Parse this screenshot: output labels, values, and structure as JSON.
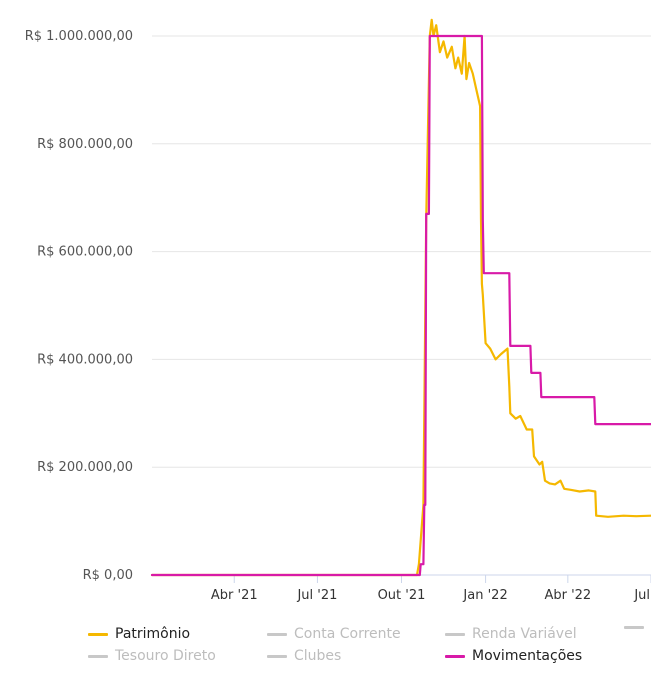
{
  "chart_data": {
    "type": "line",
    "y_ticks": [
      "R$ 1.000.000,00",
      "R$ 800.000,00",
      "R$ 600.000,00",
      "R$ 400.000,00",
      "R$ 200.000,00",
      "R$ 0,00"
    ],
    "y_tick_values": [
      1000000,
      800000,
      600000,
      400000,
      200000,
      0
    ],
    "ylim": [
      0,
      1000000
    ],
    "x_ticks": [
      "Abr '21",
      "Jul '21",
      "Out '21",
      "Jan '22",
      "Abr '22",
      "Jul"
    ],
    "x_tick_values": [
      "2021-04-01",
      "2021-07-01",
      "2021-10-01",
      "2022-01-01",
      "2022-04-01",
      "2022-07-01"
    ],
    "xlim": [
      "2021-01-01",
      "2022-07-01"
    ],
    "grid": "horizontal",
    "legend_position": "bottom",
    "series": [
      {
        "name": "Patrimônio",
        "color": "#f5b800",
        "points": [
          [
            "2021-01-01",
            0
          ],
          [
            "2021-10-18",
            0
          ],
          [
            "2021-10-20",
            20000
          ],
          [
            "2021-10-25",
            130000
          ],
          [
            "2021-10-28",
            660000
          ],
          [
            "2021-11-01",
            1000000
          ],
          [
            "2021-11-03",
            1030000
          ],
          [
            "2021-11-05",
            1000000
          ],
          [
            "2021-11-08",
            1020000
          ],
          [
            "2021-11-12",
            970000
          ],
          [
            "2021-11-16",
            990000
          ],
          [
            "2021-11-20",
            960000
          ],
          [
            "2021-11-25",
            980000
          ],
          [
            "2021-11-29",
            940000
          ],
          [
            "2021-12-02",
            960000
          ],
          [
            "2021-12-06",
            930000
          ],
          [
            "2021-12-09",
            1000000
          ],
          [
            "2021-12-11",
            920000
          ],
          [
            "2021-12-14",
            950000
          ],
          [
            "2021-12-18",
            930000
          ],
          [
            "2021-12-22",
            900000
          ],
          [
            "2021-12-26",
            870000
          ],
          [
            "2021-12-27",
            660000
          ],
          [
            "2021-12-28",
            540000
          ],
          [
            "2021-12-29",
            520000
          ],
          [
            "2022-01-01",
            430000
          ],
          [
            "2022-01-06",
            420000
          ],
          [
            "2022-01-12",
            400000
          ],
          [
            "2022-01-18",
            410000
          ],
          [
            "2022-01-25",
            420000
          ],
          [
            "2022-01-27",
            350000
          ],
          [
            "2022-01-28",
            300000
          ],
          [
            "2022-02-03",
            290000
          ],
          [
            "2022-02-08",
            295000
          ],
          [
            "2022-02-15",
            270000
          ],
          [
            "2022-02-21",
            270000
          ],
          [
            "2022-02-23",
            220000
          ],
          [
            "2022-03-01",
            205000
          ],
          [
            "2022-03-04",
            210000
          ],
          [
            "2022-03-07",
            175000
          ],
          [
            "2022-03-12",
            170000
          ],
          [
            "2022-03-18",
            168000
          ],
          [
            "2022-03-24",
            175000
          ],
          [
            "2022-03-28",
            160000
          ],
          [
            "2022-04-04",
            158000
          ],
          [
            "2022-04-14",
            155000
          ],
          [
            "2022-04-24",
            157000
          ],
          [
            "2022-05-01",
            155000
          ],
          [
            "2022-05-02",
            110000
          ],
          [
            "2022-05-15",
            108000
          ],
          [
            "2022-06-01",
            110000
          ],
          [
            "2022-06-15",
            109000
          ],
          [
            "2022-07-01",
            110000
          ]
        ]
      },
      {
        "name": "Conta Corrente",
        "color": "#c8c8c8",
        "visible": false,
        "points": []
      },
      {
        "name": "Renda Variável",
        "color": "#c8c8c8",
        "visible": false,
        "points": []
      },
      {
        "name": "Tesouro Direto",
        "color": "#c8c8c8",
        "visible": false,
        "points": []
      },
      {
        "name": "Clubes",
        "color": "#c8c8c8",
        "visible": false,
        "points": []
      },
      {
        "name": "Movimentações",
        "color": "#d81aa8",
        "points": [
          [
            "2021-01-01",
            0
          ],
          [
            "2021-10-21",
            0
          ],
          [
            "2021-10-22",
            20000
          ],
          [
            "2021-10-25",
            20000
          ],
          [
            "2021-10-26",
            130000
          ],
          [
            "2021-10-27",
            130000
          ],
          [
            "2021-10-28",
            670000
          ],
          [
            "2021-10-31",
            670000
          ],
          [
            "2021-11-01",
            1000000
          ],
          [
            "2021-12-28",
            1000000
          ],
          [
            "2021-12-29",
            660000
          ],
          [
            "2021-12-30",
            560000
          ],
          [
            "2022-01-27",
            560000
          ],
          [
            "2022-01-28",
            425000
          ],
          [
            "2022-02-19",
            425000
          ],
          [
            "2022-02-20",
            375000
          ],
          [
            "2022-03-02",
            375000
          ],
          [
            "2022-03-03",
            330000
          ],
          [
            "2022-04-30",
            330000
          ],
          [
            "2022-05-01",
            280000
          ],
          [
            "2022-07-01",
            280000
          ]
        ]
      }
    ]
  },
  "legend": {
    "items": [
      {
        "label": "Patrimônio",
        "color": "#f5b800",
        "active": true
      },
      {
        "label": "Conta Corrente",
        "color": "#c8c8c8",
        "active": false
      },
      {
        "label": "Renda Variável",
        "color": "#c8c8c8",
        "active": false
      },
      {
        "label": "",
        "color": "#c8c8c8",
        "active": false
      },
      {
        "label": "Tesouro Direto",
        "color": "#c8c8c8",
        "active": false
      },
      {
        "label": "Clubes",
        "color": "#c8c8c8",
        "active": false
      },
      {
        "label": "Movimentações",
        "color": "#d81aa8",
        "active": true
      }
    ]
  }
}
